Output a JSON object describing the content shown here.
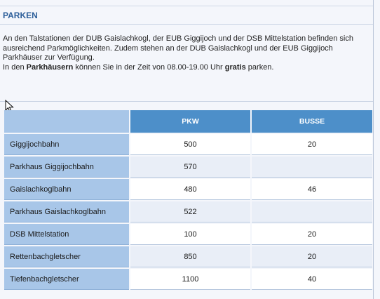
{
  "heading": "PARKEN",
  "intro": {
    "line1": "An den Talstationen der DUB Gaislachkogl, der EUB Giggijoch und der DSB Mittelstation befinden sich ausreichend Parkmöglichkeiten. Zudem stehen an der DUB Gaislachkogl und der EUB Giggijoch Parkhäuser zur Verfügung.",
    "line2_pre": "In den ",
    "line2_bold1": "Parkhäusern",
    "line2_mid": " können Sie in der Zeit von 08.00-19.00 Uhr ",
    "line2_bold2": "gratis",
    "line2_post": " parken."
  },
  "table": {
    "headers": {
      "corner": "",
      "pkw": "PKW",
      "busse": "BUSSE"
    },
    "rows": [
      {
        "name": "Giggijochbahn",
        "pkw": "500",
        "busse": "20"
      },
      {
        "name": "Parkhaus Giggijochbahn",
        "pkw": "570",
        "busse": ""
      },
      {
        "name": "Gaislachkoglbahn",
        "pkw": "480",
        "busse": "46"
      },
      {
        "name": "Parkhaus Gaislachkoglbahn",
        "pkw": "522",
        "busse": ""
      },
      {
        "name": "DSB Mittelstation",
        "pkw": "100",
        "busse": "20"
      },
      {
        "name": "Rettenbachgletscher",
        "pkw": "850",
        "busse": "20"
      },
      {
        "name": "Tiefenbachgletscher",
        "pkw": "1100",
        "busse": "40"
      }
    ]
  },
  "icons": {
    "cursor": "mouse-pointer-icon"
  },
  "colors": {
    "heading": "#2d5f9a",
    "header_bg": "#4d8fc9",
    "name_cell_bg": "#a8c6e8",
    "alt_row_bg": "#e9eef7"
  }
}
